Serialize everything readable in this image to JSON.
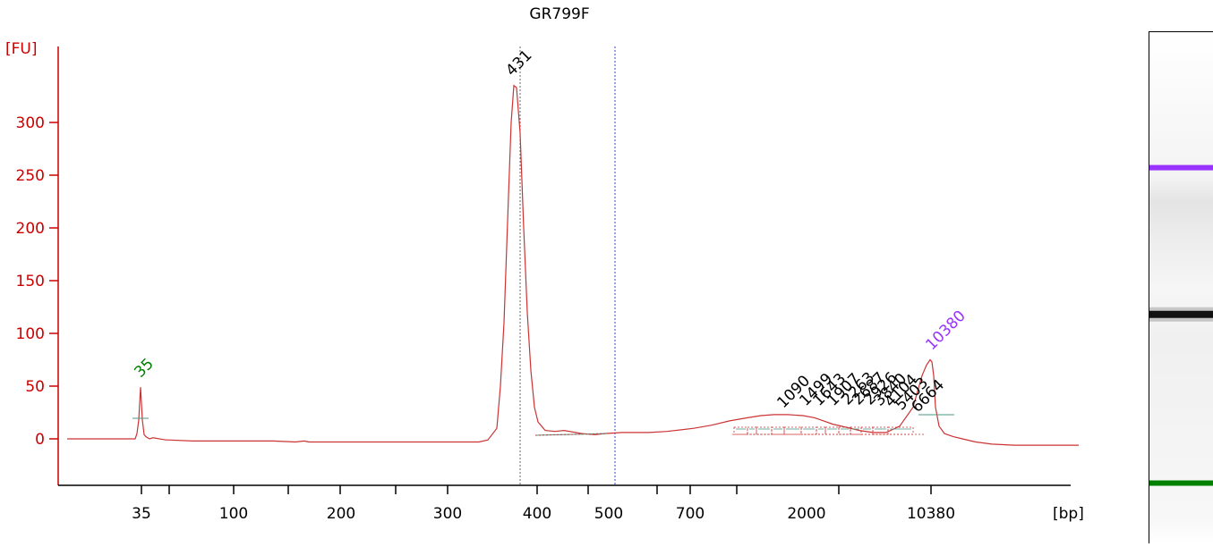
{
  "chart_data": {
    "type": "line",
    "title": "GR799F",
    "ylabel": "[FU]",
    "xlabel": "[bp]",
    "ylim": [
      -45,
      360
    ],
    "yticks": [
      0,
      50,
      100,
      150,
      200,
      250,
      300
    ],
    "xticks": [
      "35",
      "",
      "100",
      "200",
      "",
      "300",
      "400",
      "500",
      "",
      "700",
      "",
      "2000",
      "",
      "10380"
    ],
    "series": [
      {
        "x": [
          0,
          69,
          76,
          78,
          80,
          82,
          84,
          86,
          88,
          92,
          96,
          110,
          112,
          140,
          160,
          230,
          255,
          265,
          270,
          300,
          430,
          460,
          470,
          480,
          484,
          488,
          493,
          496,
          499,
          502,
          506,
          510,
          514,
          518,
          522,
          526,
          530,
          534,
          545,
          555,
          568,
          575,
          590,
          600,
          620,
          650,
          670,
          700,
          720,
          740,
          760,
          775,
          790,
          805,
          822,
          835,
          845,
          855,
          870,
          885,
          900,
          915,
          930,
          945,
          955,
          960,
          964,
          966,
          968,
          970,
          974,
          980,
          990,
          1000,
          1015,
          1033,
          1058,
          1080,
          1130
        ],
        "y": [
          0,
          0,
          0,
          5,
          18,
          49,
          18,
          4,
          2,
          0,
          1,
          -1,
          -1,
          -2,
          -2,
          -2,
          -3,
          -2,
          -3,
          -3,
          -3,
          -3,
          -1,
          10,
          50,
          110,
          230,
          300,
          335,
          333,
          290,
          200,
          120,
          65,
          30,
          16,
          12,
          8,
          7,
          8,
          6,
          5,
          4,
          5,
          6,
          6,
          7,
          10,
          13,
          17,
          20,
          22,
          23,
          23,
          22,
          20,
          17,
          14,
          11,
          8,
          6,
          6,
          12,
          30,
          60,
          70,
          75,
          73,
          60,
          30,
          12,
          5,
          2,
          0,
          -3,
          -5,
          -6,
          -6,
          -6
        ]
      }
    ],
    "peaks": [
      {
        "label": "35",
        "x": 82,
        "y": 49,
        "color": "#008000"
      },
      {
        "label": "431",
        "x": 497,
        "y": 335,
        "color": "#000000"
      },
      {
        "label": "10380",
        "x": 966,
        "y": 75,
        "color": "#9933ff"
      },
      {
        "label": "1090",
        "x": 800,
        "y": 20,
        "color": "#000000"
      },
      {
        "label": "1499",
        "x": 825,
        "y": 22,
        "color": "#000000"
      },
      {
        "label": "1643",
        "x": 840,
        "y": 22,
        "color": "#000000"
      },
      {
        "label": "1907",
        "x": 856,
        "y": 22,
        "color": "#000000"
      },
      {
        "label": "2263",
        "x": 872,
        "y": 23,
        "color": "#000000"
      },
      {
        "label": "2687",
        "x": 884,
        "y": 23,
        "color": "#000000"
      },
      {
        "label": "2926",
        "x": 897,
        "y": 23,
        "color": "#000000"
      },
      {
        "label": "3840",
        "x": 908,
        "y": 22,
        "color": "#000000"
      },
      {
        "label": "4104",
        "x": 920,
        "y": 21,
        "color": "#000000"
      },
      {
        "label": "5403",
        "x": 932,
        "y": 18,
        "color": "#000000"
      },
      {
        "label": "6664",
        "x": 950,
        "y": 16,
        "color": "#000000"
      }
    ],
    "grid": false,
    "colors": {
      "axis": "#cc0000",
      "trace": "#cc3333",
      "baseline": "#4a9a8a",
      "marker_upper": "#9933ff",
      "marker_lower": "#008000",
      "sample_band": "#111111"
    }
  },
  "gel": {
    "bands": [
      {
        "name": "upper-marker",
        "position": 0.265,
        "color": "#9933ff",
        "intensity": 1
      },
      {
        "name": "sample",
        "position": 0.552,
        "color": "#111111",
        "intensity": 1
      },
      {
        "name": "lower-marker",
        "position": 0.882,
        "color": "#008000",
        "intensity": 1
      }
    ]
  }
}
